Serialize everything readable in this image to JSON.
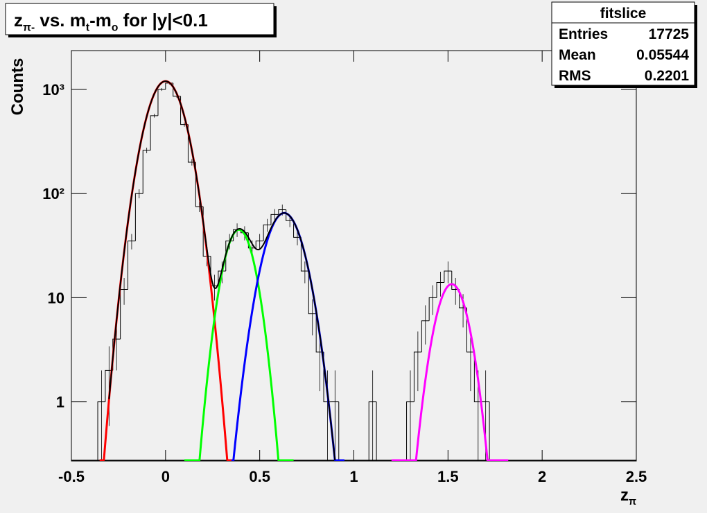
{
  "chart_data": {
    "type": "histogram",
    "title": [
      {
        "text": "z"
      },
      {
        "text": "π-",
        "sub": true
      },
      {
        "text": " vs. m"
      },
      {
        "text": "t",
        "sub": true
      },
      {
        "text": "-m"
      },
      {
        "text": "o",
        "sub": true
      },
      {
        "text": " for |y|<0.1"
      }
    ],
    "x_label": [
      {
        "text": "z"
      },
      {
        "text": "π",
        "sub": true
      }
    ],
    "y_label": "Counts",
    "log_y": true,
    "xlim": [
      -0.5,
      2.5
    ],
    "xticks": [
      -0.5,
      0,
      0.5,
      1,
      1.5,
      2,
      2.5
    ],
    "ylim": [
      0.27,
      2360
    ],
    "yticks": [
      1,
      10,
      {
        "value": 100,
        "label": "10²"
      },
      {
        "value": 1000,
        "label": "10³"
      }
    ],
    "stats": {
      "title": "fitslice",
      "rows": [
        {
          "name": "Entries",
          "value": 17725
        },
        {
          "name": "Mean",
          "value": 0.05544
        },
        {
          "name": "RMS",
          "value": 0.2201
        }
      ]
    },
    "color": "#000000",
    "bins": [
      -0.36,
      -0.32,
      -0.28,
      -0.24,
      -0.2,
      -0.16,
      -0.12,
      -0.08,
      -0.04,
      0,
      0.04,
      0.08,
      0.12,
      0.16,
      0.2,
      0.24,
      0.28,
      0.32,
      0.36,
      0.4,
      0.44,
      0.48,
      0.52,
      0.56,
      0.6,
      0.64,
      0.68,
      0.72,
      0.76,
      0.8,
      0.84,
      0.88,
      0.92,
      0.96,
      1,
      1.04,
      1.08,
      1.12,
      1.16,
      1.2,
      1.24,
      1.28,
      1.32,
      1.36,
      1.4,
      1.44,
      1.48,
      1.52,
      1.56,
      1.6,
      1.64,
      1.68,
      1.72,
      1.76
    ],
    "counts": [
      1,
      2,
      4,
      12,
      35,
      100,
      260,
      560,
      1000,
      1150,
      860,
      460,
      200,
      75,
      25,
      13,
      18,
      35,
      45,
      42,
      30,
      35,
      50,
      63,
      70,
      55,
      38,
      18,
      7,
      3,
      1,
      1,
      0,
      0,
      0,
      0,
      1,
      0,
      0,
      0,
      0,
      1,
      3,
      6,
      10,
      14,
      18,
      12,
      8,
      3,
      1,
      1,
      0
    ],
    "fits": [
      {
        "color": "#ff0000",
        "amplitude": 1200,
        "mean": 0,
        "sigma": 0.08,
        "range": [
          -0.35,
          0.35
        ]
      },
      {
        "color": "#00ff00",
        "amplitude": 45,
        "mean": 0.39,
        "sigma": 0.0656,
        "range": [
          0.1,
          0.68
        ]
      },
      {
        "color": "#0000ff",
        "amplitude": 65,
        "mean": 0.63,
        "sigma": 0.0815,
        "range": [
          0.35,
          0.95
        ]
      },
      {
        "color": "#ff00ff",
        "amplitude": 13.5,
        "mean": 1.52,
        "sigma": 0.068,
        "range": [
          1.2,
          1.82
        ]
      }
    ],
    "total_fit": {
      "color": "#000000",
      "range": [
        -0.3,
        0.9
      ]
    }
  }
}
